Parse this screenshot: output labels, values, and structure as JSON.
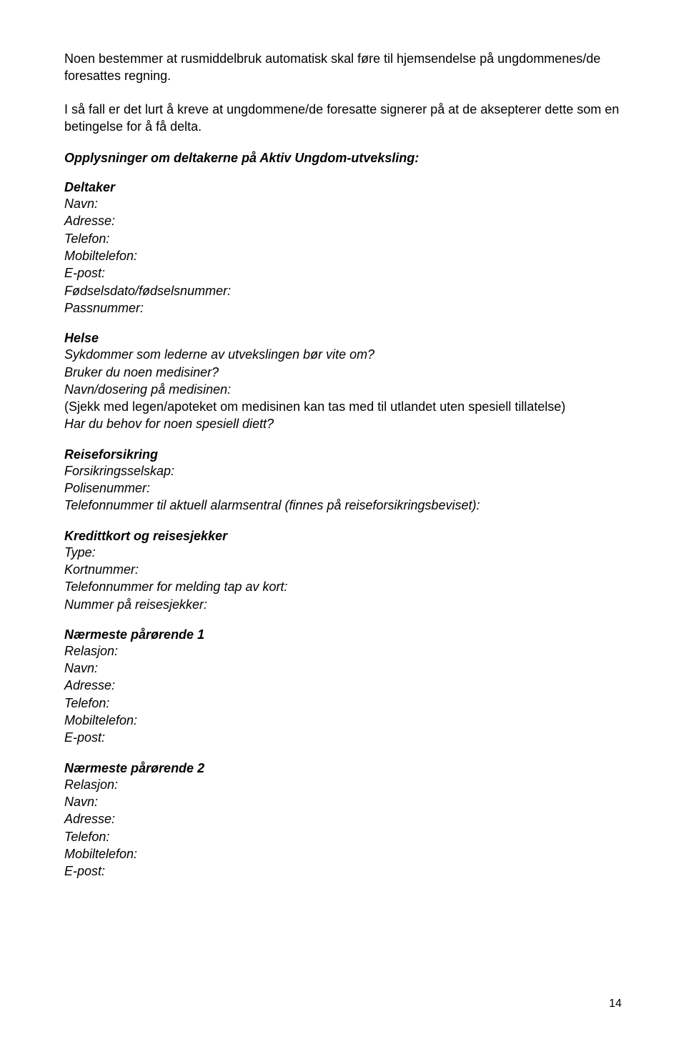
{
  "intro": {
    "p1": "Noen bestemmer at rusmiddelbruk automatisk skal føre til hjemsendelse på ungdommenes/de foresattes regning.",
    "p2": "I så fall er det lurt å kreve at ungdommene/de foresatte signerer på at de aksepterer dette som en betingelse for å få delta."
  },
  "opplysninger_title": "Opplysninger om deltakerne på Aktiv Ungdom-utveksling:",
  "deltaker": {
    "title": "Deltaker",
    "navn": "Navn:",
    "adresse": "Adresse:",
    "telefon": "Telefon:",
    "mobil": "Mobiltelefon:",
    "epost": "E-post:",
    "fodsel": "Fødselsdato/fødselsnummer:",
    "pass": "Passnummer:"
  },
  "helse": {
    "title": "Helse",
    "q1": "Sykdommer som lederne av utvekslingen bør vite om?",
    "q2": "Bruker du noen medisiner?",
    "q3": "Navn/dosering på medisinen:",
    "q4": "(Sjekk med legen/apoteket om medisinen kan tas med til utlandet uten spesiell tillatelse)",
    "q5": "Har du behov for noen spesiell diett?"
  },
  "reise": {
    "title": "Reiseforsikring",
    "selskap": "Forsikringsselskap:",
    "polise": "Polisenummer:",
    "tlf": "Telefonnummer til aktuell alarmsentral (finnes på reiseforsikringsbeviset):"
  },
  "kreditt": {
    "title": "Kredittkort og reisesjekker",
    "type": "Type:",
    "kortnr": "Kortnummer:",
    "tlf": "Telefonnummer for melding tap av kort:",
    "sjekker": "Nummer på reisesjekker:"
  },
  "paror1": {
    "title": "Nærmeste pårørende 1",
    "relasjon": "Relasjon:",
    "navn": "Navn:",
    "adresse": "Adresse:",
    "telefon": "Telefon:",
    "mobil": "Mobiltelefon:",
    "epost": "E-post:"
  },
  "paror2": {
    "title": "Nærmeste pårørende 2",
    "relasjon": "Relasjon:",
    "navn": "Navn:",
    "adresse": "Adresse:",
    "telefon": "Telefon:",
    "mobil": "Mobiltelefon:",
    "epost": "E-post:"
  },
  "page_number": "14"
}
